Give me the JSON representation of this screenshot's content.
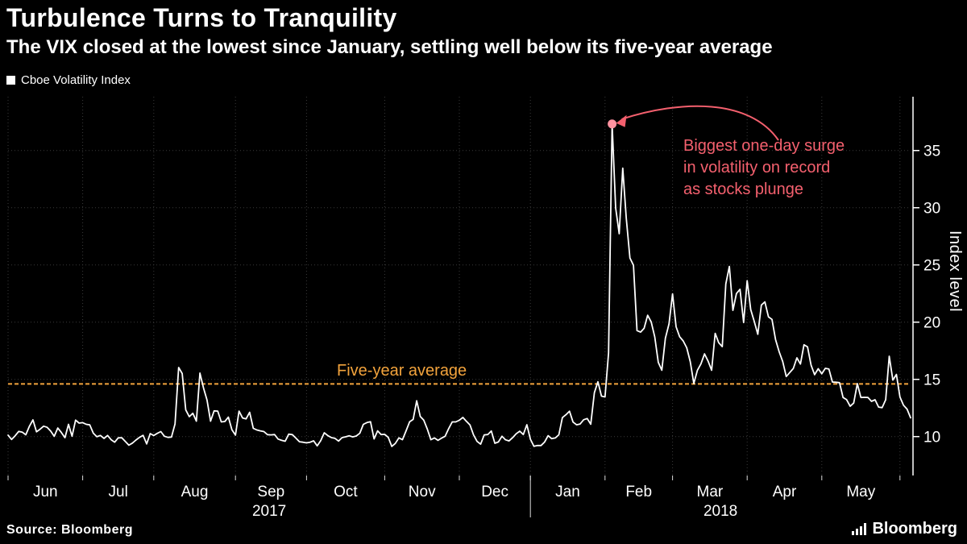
{
  "chart_data": {
    "type": "line",
    "title": "Turbulence Turns to Tranquility",
    "subtitle": "The VIX closed at the lowest since January, settling well below its five-year average",
    "series_name": "Cboe Volatility Index",
    "ylabel": "Index level",
    "y_ticks": [
      10,
      15,
      20,
      25,
      30,
      35
    ],
    "y_range": [
      6.6,
      39.7
    ],
    "month_labels": [
      "Jun",
      "Jul",
      "Aug",
      "Sep",
      "Oct",
      "Nov",
      "Dec",
      "Jan",
      "Feb",
      "Mar",
      "Apr",
      "May"
    ],
    "month_start_indices": [
      0,
      21,
      41,
      64,
      84,
      106,
      127,
      147,
      168,
      187,
      208,
      229,
      251
    ],
    "year_labels": [
      "2017",
      "2018"
    ],
    "year_boundary_index": 147,
    "average_line": {
      "value": 14.6,
      "label": "Five-year average",
      "color": "#f2a33c"
    },
    "annotation": {
      "lines": [
        "Biggest one-day surge",
        "in volatility on record",
        "as stocks plunge"
      ],
      "color": "#f4606e",
      "dot_color": "#ff92a0",
      "peak_index": 170,
      "peak_value": 37.32
    },
    "line_color": "#ffffff",
    "grid_color": "#3a3a3a",
    "background_color": "#000000",
    "values": [
      10.13,
      9.75,
      10.07,
      10.45,
      10.39,
      10.16,
      10.9,
      11.46,
      10.42,
      10.64,
      10.91,
      10.81,
      10.48,
      10.02,
      10.75,
      10.36,
      9.9,
      11.07,
      10.03,
      11.44,
      11.18,
      11.22,
      11.07,
      11.02,
      10.3,
      9.99,
      10.1,
      9.84,
      10.1,
      9.73,
      9.51,
      9.89,
      9.9,
      9.58,
      9.25,
      9.43,
      9.7,
      9.93,
      10.11,
      9.36,
      10.26,
      10.09,
      10.28,
      10.44,
      10.03,
      9.93,
      9.96,
      11.11,
      16.04,
      15.51,
      12.33,
      11.74,
      12.04,
      11.35,
      15.55,
      14.26,
      13.19,
      11.35,
      12.25,
      12.23,
      11.28,
      11.32,
      11.7,
      10.59,
      10.13,
      12.23,
      11.63,
      11.55,
      12.12,
      10.73,
      10.58,
      10.5,
      10.44,
      10.17,
      10.15,
      10.18,
      9.78,
      9.67,
      9.59,
      10.21,
      10.17,
      9.87,
      9.55,
      9.51,
      9.45,
      9.51,
      9.63,
      9.19,
      9.65,
      10.33,
      10.08,
      9.91,
      9.85,
      9.61,
      9.91,
      9.98,
      10.07,
      9.97,
      10.05,
      10.29,
      11.07,
      11.23,
      11.3,
      9.8,
      10.5,
      10.18,
      10.2,
      9.93,
      9.14,
      9.4,
      9.89,
      9.73,
      10.5,
      11.29,
      11.5,
      13.13,
      11.76,
      11.43,
      10.65,
      9.73,
      9.88,
      9.67,
      9.87,
      10.03,
      10.7,
      11.28,
      11.28,
      11.43,
      11.68,
      11.33,
      11.02,
      10.16,
      9.58,
      9.34,
      10.15,
      10.18,
      10.49,
      9.42,
      9.53,
      10.03,
      9.72,
      9.62,
      9.9,
      10.25,
      10.47,
      10.18,
      11.04,
      9.77,
      9.15,
      9.22,
      9.22,
      9.52,
      10.08,
      9.82,
      9.88,
      10.16,
      11.66,
      11.91,
      12.22,
      11.27,
      11.03,
      11.1,
      11.47,
      11.58,
      11.08,
      13.84,
      14.79,
      13.54,
      13.47,
      17.31,
      37.32,
      29.98,
      27.73,
      33.46,
      29.06,
      25.61,
      24.97,
      19.26,
      19.13,
      19.46,
      20.6,
      20.02,
      18.72,
      16.49,
      15.8,
      18.59,
      19.85,
      22.47,
      19.59,
      18.73,
      18.36,
      17.76,
      16.54,
      14.64,
      15.78,
      16.35,
      17.23,
      16.59,
      15.8,
      19.02,
      18.2,
      17.86,
      23.34,
      24.87,
      21.03,
      22.5,
      22.87,
      19.97,
      23.62,
      21.1,
      20.06,
      18.94,
      21.49,
      21.77,
      20.47,
      20.24,
      18.49,
      17.41,
      16.56,
      15.25,
      15.6,
      15.96,
      16.88,
      16.34,
      18.02,
      17.84,
      16.24,
      15.41,
      15.93,
      15.49,
      15.97,
      15.9,
      14.77,
      14.75,
      14.71,
      13.42,
      13.23,
      12.65,
      12.93,
      14.63,
      13.42,
      13.43,
      13.42,
      13.08,
      13.22,
      12.58,
      12.53,
      13.22,
      17.02,
      14.94,
      15.43,
      13.46,
      12.74,
      12.4,
      11.64
    ]
  },
  "footer": {
    "source": "Source: Bloomberg",
    "logo": "Bloomberg"
  }
}
